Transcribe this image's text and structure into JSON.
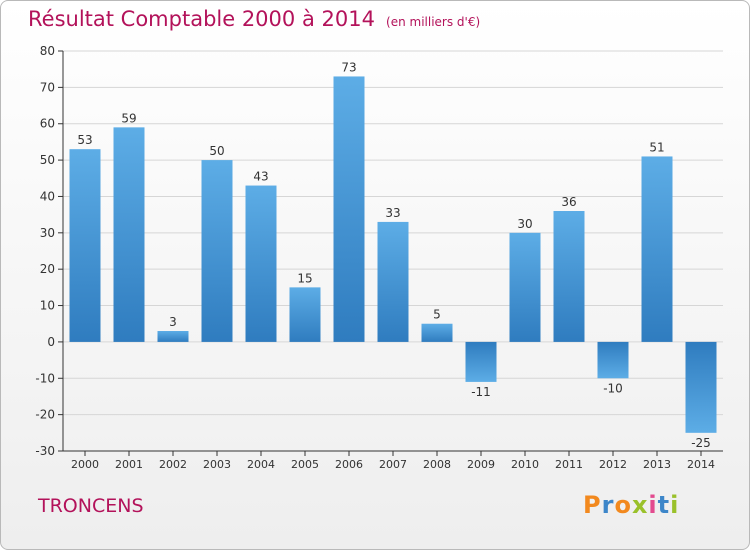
{
  "title": "Résultat Comptable 2000 à 2014",
  "unit_note": "(en milliers d'€)",
  "commune": "TRONCENS",
  "logo": {
    "letters": [
      "P",
      "r",
      "o",
      "x",
      "i",
      "t",
      "i"
    ],
    "colors": [
      "#f2891e",
      "#3d86c9",
      "#f2891e",
      "#9ac12a",
      "#e34b8f",
      "#3d86c9",
      "#9ac12a"
    ]
  },
  "chart_data": {
    "type": "bar",
    "categories": [
      "2000",
      "2001",
      "2002",
      "2003",
      "2004",
      "2005",
      "2006",
      "2007",
      "2008",
      "2009",
      "2010",
      "2011",
      "2012",
      "2013",
      "2014"
    ],
    "values": [
      53,
      59,
      3,
      50,
      43,
      15,
      73,
      33,
      5,
      -11,
      30,
      36,
      -10,
      51,
      -25
    ],
    "ylim": [
      -30,
      80
    ],
    "yticks": [
      -30,
      -20,
      -10,
      0,
      10,
      20,
      30,
      40,
      50,
      60,
      70,
      80
    ],
    "grid": true,
    "colors": {
      "bar_light": "#5dade6",
      "bar_dark": "#2f7cbf",
      "grid": "#d6d6d6",
      "axis": "#333333"
    }
  }
}
